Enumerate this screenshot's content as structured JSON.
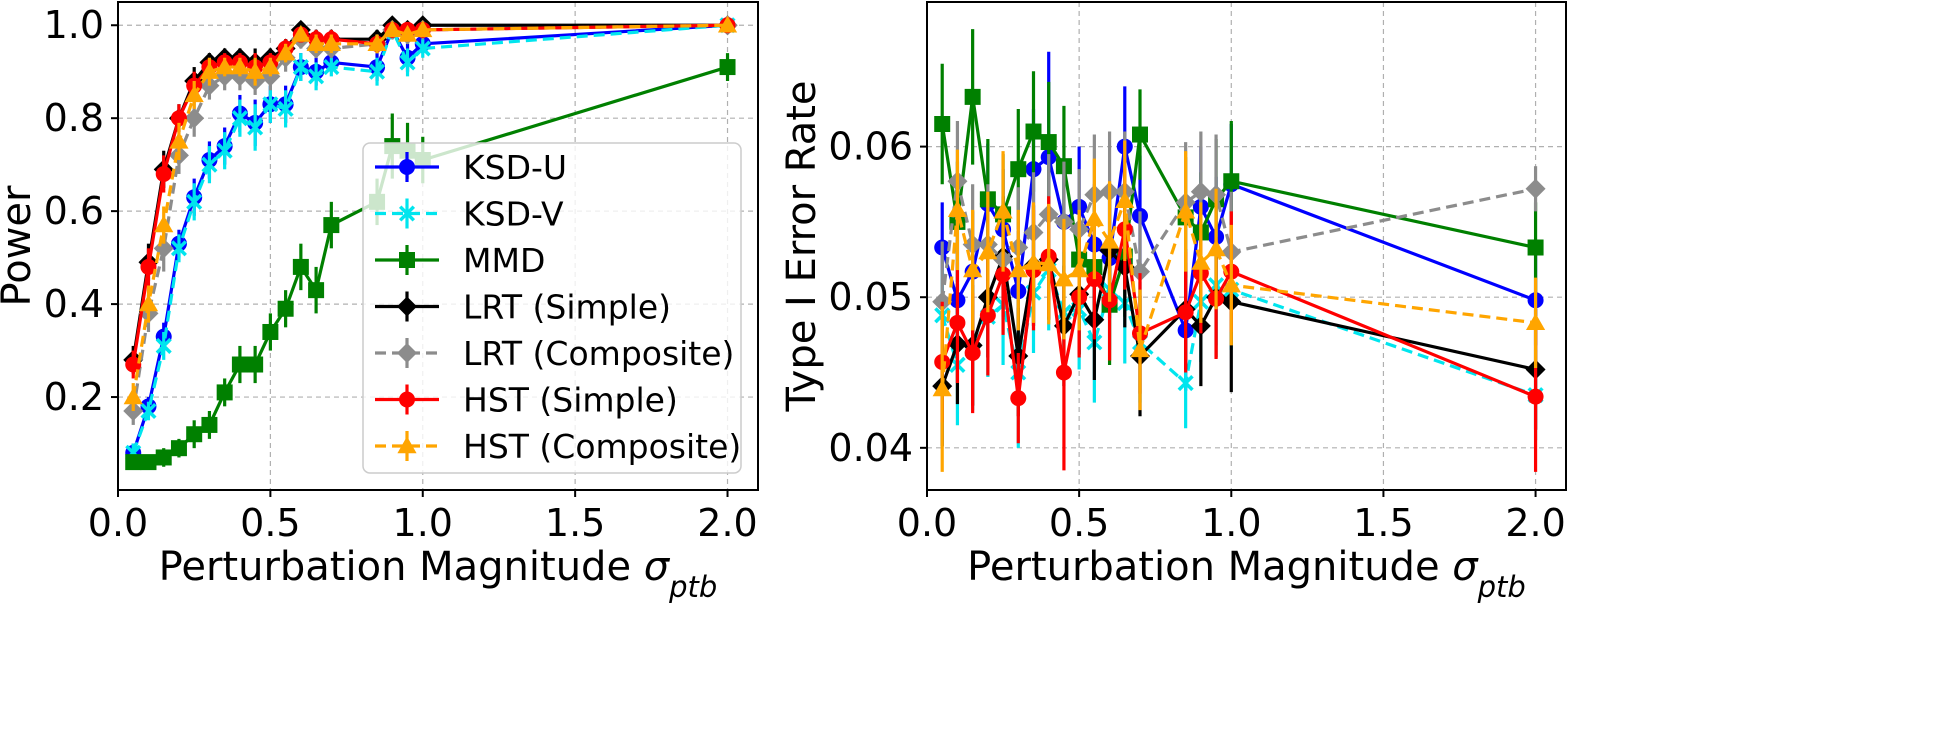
{
  "chart_data": [
    {
      "type": "line",
      "xlabel": "Perturbation Magnitude σ",
      "xlabel_sub": "ptb",
      "ylabel": "Power",
      "xlim": [
        0.0,
        2.1
      ],
      "ylim": [
        0.0,
        1.05
      ],
      "xticks": [
        0.0,
        0.5,
        1.0,
        1.5,
        2.0
      ],
      "xtick_labels": [
        "0.0",
        "0.5",
        "1.0",
        "1.5",
        "2.0"
      ],
      "yticks": [
        0.2,
        0.4,
        0.6,
        0.8,
        1.0
      ],
      "ytick_labels": [
        "0.2",
        "0.4",
        "0.6",
        "0.8",
        "1.0"
      ],
      "grid": true,
      "legend": "center-right",
      "x": [
        0.05,
        0.1,
        0.15,
        0.2,
        0.25,
        0.3,
        0.35,
        0.4,
        0.45,
        0.5,
        0.55,
        0.6,
        0.65,
        0.7,
        0.85,
        0.9,
        0.95,
        1.0,
        2.0
      ],
      "series": [
        {
          "name": "KSD-U",
          "color": "#0000ff",
          "marker": "circle",
          "dash": false,
          "values": [
            0.08,
            0.18,
            0.33,
            0.53,
            0.63,
            0.71,
            0.74,
            0.81,
            0.79,
            0.83,
            0.83,
            0.91,
            0.9,
            0.92,
            0.91,
            0.99,
            0.93,
            0.96,
            1.0
          ],
          "err": [
            0.02,
            0.02,
            0.03,
            0.03,
            0.04,
            0.04,
            0.04,
            0.04,
            0.05,
            0.04,
            0.04,
            0.03,
            0.03,
            0.02,
            0.03,
            0.02,
            0.03,
            0.02,
            0.01
          ]
        },
        {
          "name": "KSD-V",
          "color": "#00e5ee",
          "marker": "x",
          "dash": true,
          "values": [
            0.08,
            0.17,
            0.31,
            0.52,
            0.62,
            0.7,
            0.73,
            0.8,
            0.78,
            0.83,
            0.82,
            0.91,
            0.89,
            0.91,
            0.9,
            0.99,
            0.92,
            0.95,
            1.0
          ],
          "err": [
            0.02,
            0.02,
            0.03,
            0.03,
            0.04,
            0.04,
            0.04,
            0.04,
            0.05,
            0.04,
            0.04,
            0.03,
            0.03,
            0.02,
            0.03,
            0.02,
            0.03,
            0.02,
            0.01
          ]
        },
        {
          "name": "MMD",
          "color": "#008000",
          "marker": "square",
          "dash": false,
          "values": [
            0.06,
            0.06,
            0.07,
            0.09,
            0.12,
            0.14,
            0.21,
            0.27,
            0.27,
            0.34,
            0.39,
            0.48,
            0.43,
            0.57,
            0.62,
            0.74,
            0.73,
            0.71,
            0.91
          ],
          "err": [
            0.01,
            0.01,
            0.02,
            0.02,
            0.03,
            0.03,
            0.03,
            0.04,
            0.04,
            0.04,
            0.04,
            0.05,
            0.05,
            0.05,
            0.05,
            0.07,
            0.06,
            0.05,
            0.03
          ]
        },
        {
          "name": "LRT (Simple)",
          "color": "#000000",
          "marker": "diamond",
          "dash": false,
          "values": [
            0.28,
            0.49,
            0.69,
            0.8,
            0.88,
            0.92,
            0.93,
            0.93,
            0.92,
            0.93,
            0.95,
            0.99,
            0.97,
            0.97,
            0.97,
            1.0,
            0.99,
            1.0,
            1.0
          ],
          "err": [
            0.03,
            0.04,
            0.04,
            0.03,
            0.03,
            0.02,
            0.02,
            0.02,
            0.03,
            0.02,
            0.02,
            0.01,
            0.02,
            0.02,
            0.02,
            0.01,
            0.01,
            0.01,
            0.01
          ]
        },
        {
          "name": "LRT (Composite)",
          "color": "#8c8c8c",
          "marker": "diamond",
          "dash": true,
          "values": [
            0.17,
            0.38,
            0.52,
            0.72,
            0.8,
            0.87,
            0.89,
            0.89,
            0.88,
            0.89,
            0.93,
            0.97,
            0.95,
            0.95,
            0.96,
            0.99,
            0.98,
            0.99,
            1.0
          ],
          "err": [
            0.03,
            0.04,
            0.05,
            0.04,
            0.04,
            0.03,
            0.03,
            0.03,
            0.03,
            0.03,
            0.03,
            0.02,
            0.02,
            0.02,
            0.02,
            0.01,
            0.02,
            0.01,
            0.01
          ]
        },
        {
          "name": "HST (Simple)",
          "color": "#ff0000",
          "marker": "circle",
          "dash": false,
          "values": [
            0.27,
            0.48,
            0.68,
            0.8,
            0.87,
            0.91,
            0.92,
            0.92,
            0.91,
            0.92,
            0.95,
            0.98,
            0.97,
            0.97,
            0.96,
            0.99,
            0.99,
            0.99,
            1.0
          ],
          "err": [
            0.03,
            0.04,
            0.04,
            0.03,
            0.03,
            0.02,
            0.02,
            0.02,
            0.03,
            0.02,
            0.02,
            0.01,
            0.02,
            0.02,
            0.02,
            0.01,
            0.01,
            0.01,
            0.01
          ]
        },
        {
          "name": "HST (Composite)",
          "color": "#ffa500",
          "marker": "triangle",
          "dash": true,
          "values": [
            0.2,
            0.4,
            0.57,
            0.75,
            0.85,
            0.9,
            0.91,
            0.91,
            0.9,
            0.91,
            0.94,
            0.98,
            0.96,
            0.96,
            0.96,
            0.99,
            0.98,
            0.99,
            1.0
          ],
          "err": [
            0.03,
            0.04,
            0.04,
            0.04,
            0.03,
            0.03,
            0.02,
            0.02,
            0.03,
            0.02,
            0.02,
            0.01,
            0.02,
            0.02,
            0.02,
            0.01,
            0.01,
            0.01,
            0.01
          ]
        }
      ]
    },
    {
      "type": "line",
      "xlabel": "Perturbation Magnitude σ",
      "xlabel_sub": "ptb",
      "ylabel": "Type I Error Rate",
      "xlim": [
        0.0,
        2.1
      ],
      "ylim": [
        0.0372,
        0.0696
      ],
      "xticks": [
        0.0,
        0.5,
        1.0,
        1.5,
        2.0
      ],
      "xtick_labels": [
        "0.0",
        "0.5",
        "1.0",
        "1.5",
        "2.0"
      ],
      "yticks": [
        0.04,
        0.05,
        0.06
      ],
      "ytick_labels": [
        "0.04",
        "0.05",
        "0.06"
      ],
      "grid": true,
      "x": [
        0.05,
        0.1,
        0.15,
        0.2,
        0.25,
        0.3,
        0.35,
        0.4,
        0.45,
        0.5,
        0.55,
        0.6,
        0.65,
        0.7,
        0.85,
        0.9,
        0.95,
        1.0,
        2.0
      ],
      "series": [
        {
          "name": "KSD-U",
          "color": "#0000ff",
          "marker": "circle",
          "dash": false,
          "values": [
            0.0533,
            0.0498,
            0.0517,
            0.0562,
            0.0545,
            0.0504,
            0.0585,
            0.0593,
            0.055,
            0.056,
            0.0535,
            0.0526,
            0.06,
            0.0554,
            0.0478,
            0.056,
            0.054,
            0.0575,
            0.0498
          ],
          "err": [
            0.003,
            0.004,
            0.004,
            0.004,
            0.004,
            0.004,
            0.004,
            0.007,
            0.004,
            0.004,
            0.004,
            0.004,
            0.004,
            0.004,
            0.004,
            0.004,
            0.004,
            0.004,
            0.003
          ]
        },
        {
          "name": "KSD-V",
          "color": "#00e5ee",
          "marker": "x",
          "dash": true,
          "values": [
            0.0488,
            0.0455,
            0.0465,
            0.0487,
            0.0495,
            0.045,
            0.0503,
            0.0518,
            0.049,
            0.0492,
            0.047,
            0.0505,
            0.0496,
            0.047,
            0.0443,
            0.0497,
            0.0508,
            0.0505,
            0.0435
          ],
          "err": [
            0.003,
            0.004,
            0.004,
            0.004,
            0.004,
            0.005,
            0.004,
            0.004,
            0.004,
            0.004,
            0.004,
            0.004,
            0.004,
            0.004,
            0.003,
            0.004,
            0.004,
            0.004,
            0.003
          ]
        },
        {
          "name": "MMD",
          "color": "#008000",
          "marker": "square",
          "dash": false,
          "values": [
            0.0615,
            0.055,
            0.0633,
            0.0565,
            0.0555,
            0.0585,
            0.061,
            0.0603,
            0.0587,
            0.0525,
            0.052,
            0.0495,
            0.0527,
            0.0608,
            0.0553,
            0.0543,
            0.0565,
            0.0577,
            0.0533
          ],
          "err": [
            0.004,
            0.004,
            0.0045,
            0.004,
            0.004,
            0.004,
            0.004,
            0.004,
            0.004,
            0.004,
            0.004,
            0.004,
            0.004,
            0.003,
            0.004,
            0.004,
            0.004,
            0.004,
            0.003
          ]
        },
        {
          "name": "LRT (Simple)",
          "color": "#000000",
          "marker": "diamond",
          "dash": false,
          "values": [
            0.0441,
            0.0469,
            0.0468,
            0.05,
            0.0527,
            0.0461,
            0.0521,
            0.0525,
            0.0481,
            0.0502,
            0.0485,
            0.0531,
            0.052,
            0.0461,
            0.0492,
            0.0481,
            0.05,
            0.0497,
            0.0452
          ],
          "err": [
            0.004,
            0.004,
            0.004,
            0.004,
            0.004,
            0.004,
            0.004,
            0.004,
            0.004,
            0.004,
            0.004,
            0.004,
            0.004,
            0.004,
            0.004,
            0.004,
            0.004,
            0.006,
            0.004
          ]
        },
        {
          "name": "LRT (Composite)",
          "color": "#8c8c8c",
          "marker": "diamond",
          "dash": true,
          "values": [
            0.0497,
            0.0577,
            0.0535,
            0.0535,
            0.0525,
            0.0533,
            0.0543,
            0.0555,
            0.055,
            0.0545,
            0.0568,
            0.057,
            0.057,
            0.0517,
            0.0563,
            0.057,
            0.0568,
            0.053,
            0.0572
          ],
          "err": [
            0.004,
            0.004,
            0.004,
            0.004,
            0.004,
            0.004,
            0.004,
            0.004,
            0.004,
            0.004,
            0.004,
            0.004,
            0.004,
            0.004,
            0.004,
            0.004,
            0.004,
            0.004,
            0.0015
          ]
        },
        {
          "name": "HST (Simple)",
          "color": "#ff0000",
          "marker": "circle",
          "dash": false,
          "values": [
            0.0457,
            0.0483,
            0.0463,
            0.0488,
            0.0515,
            0.0433,
            0.0518,
            0.0527,
            0.045,
            0.05,
            0.0512,
            0.0498,
            0.0545,
            0.0476,
            0.049,
            0.0516,
            0.0499,
            0.0517,
            0.0434
          ],
          "err": [
            0.004,
            0.004,
            0.004,
            0.004,
            0.004,
            0.003,
            0.004,
            0.004,
            0.0065,
            0.004,
            0.004,
            0.004,
            0.004,
            0.004,
            0.004,
            0.004,
            0.004,
            0.004,
            0.005
          ]
        },
        {
          "name": "HST (Composite)",
          "color": "#ffa500",
          "marker": "triangle",
          "dash": true,
          "values": [
            0.0439,
            0.0558,
            0.0518,
            0.053,
            0.0557,
            0.0518,
            0.0523,
            0.0522,
            0.0512,
            0.0518,
            0.0552,
            0.0537,
            0.0564,
            0.0465,
            0.0557,
            0.0523,
            0.0532,
            0.0508,
            0.0483
          ],
          "err": [
            0.0055,
            0.004,
            0.004,
            0.004,
            0.004,
            0.004,
            0.004,
            0.004,
            0.004,
            0.004,
            0.004,
            0.004,
            0.004,
            0.004,
            0.004,
            0.004,
            0.004,
            0.004,
            0.003
          ]
        }
      ]
    }
  ]
}
